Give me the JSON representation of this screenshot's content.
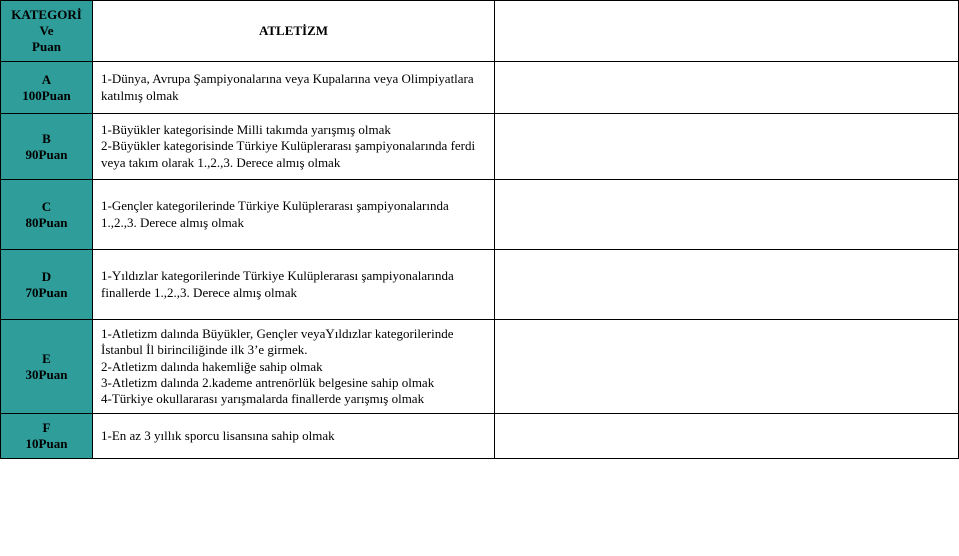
{
  "rows": {
    "header": {
      "cat": "KATEGORİ Ve Puan",
      "desc": "ATLETİZM"
    },
    "a": {
      "cat": "A 100Puan",
      "desc": "1-Dünya,  Avrupa  Şampiyonalarına  veya  Kupalarına  veya Olimpiyatlara katılmış olmak"
    },
    "b": {
      "cat": "B 90Puan",
      "desc": "1-Büyükler kategorisinde Milli takımda yarışmış olmak\n2-Büyükler kategorisinde Türkiye Kulüplerarası şampiyonalarında ferdi veya takım olarak 1.,2.,3. Derece almış olmak"
    },
    "c": {
      "cat": "C 80Puan",
      "desc": "1-Gençler kategorilerinde Türkiye Kulüplerarası şampiyonalarında 1.,2.,3. Derece almış olmak"
    },
    "d": {
      "cat": "D 70Puan",
      "desc": "1-Yıldızlar kategorilerinde Türkiye Kulüplerarası şampiyonalarında finallerde 1.,2.,3. Derece almış olmak"
    },
    "e": {
      "cat": "E 30Puan",
      "desc": "1-Atletizm dalında Büyükler, Gençler veyaYıldızlar kategorilerinde İstanbul İl birinciliğinde ilk 3’e girmek.\n2-Atletizm dalında hakemliğe sahip olmak\n3-Atletizm dalında 2.kademe antrenörlük belgesine sahip olmak\n4-Türkiye okullararası yarışmalarda finallerde yarışmış olmak"
    },
    "f": {
      "cat": "F 10Puan",
      "desc": "1-En az 3 yıllık sporcu lisansına sahip olmak"
    }
  },
  "colors": {
    "teal": "#2f9d9a",
    "border": "#000000",
    "background": "#ffffff"
  }
}
